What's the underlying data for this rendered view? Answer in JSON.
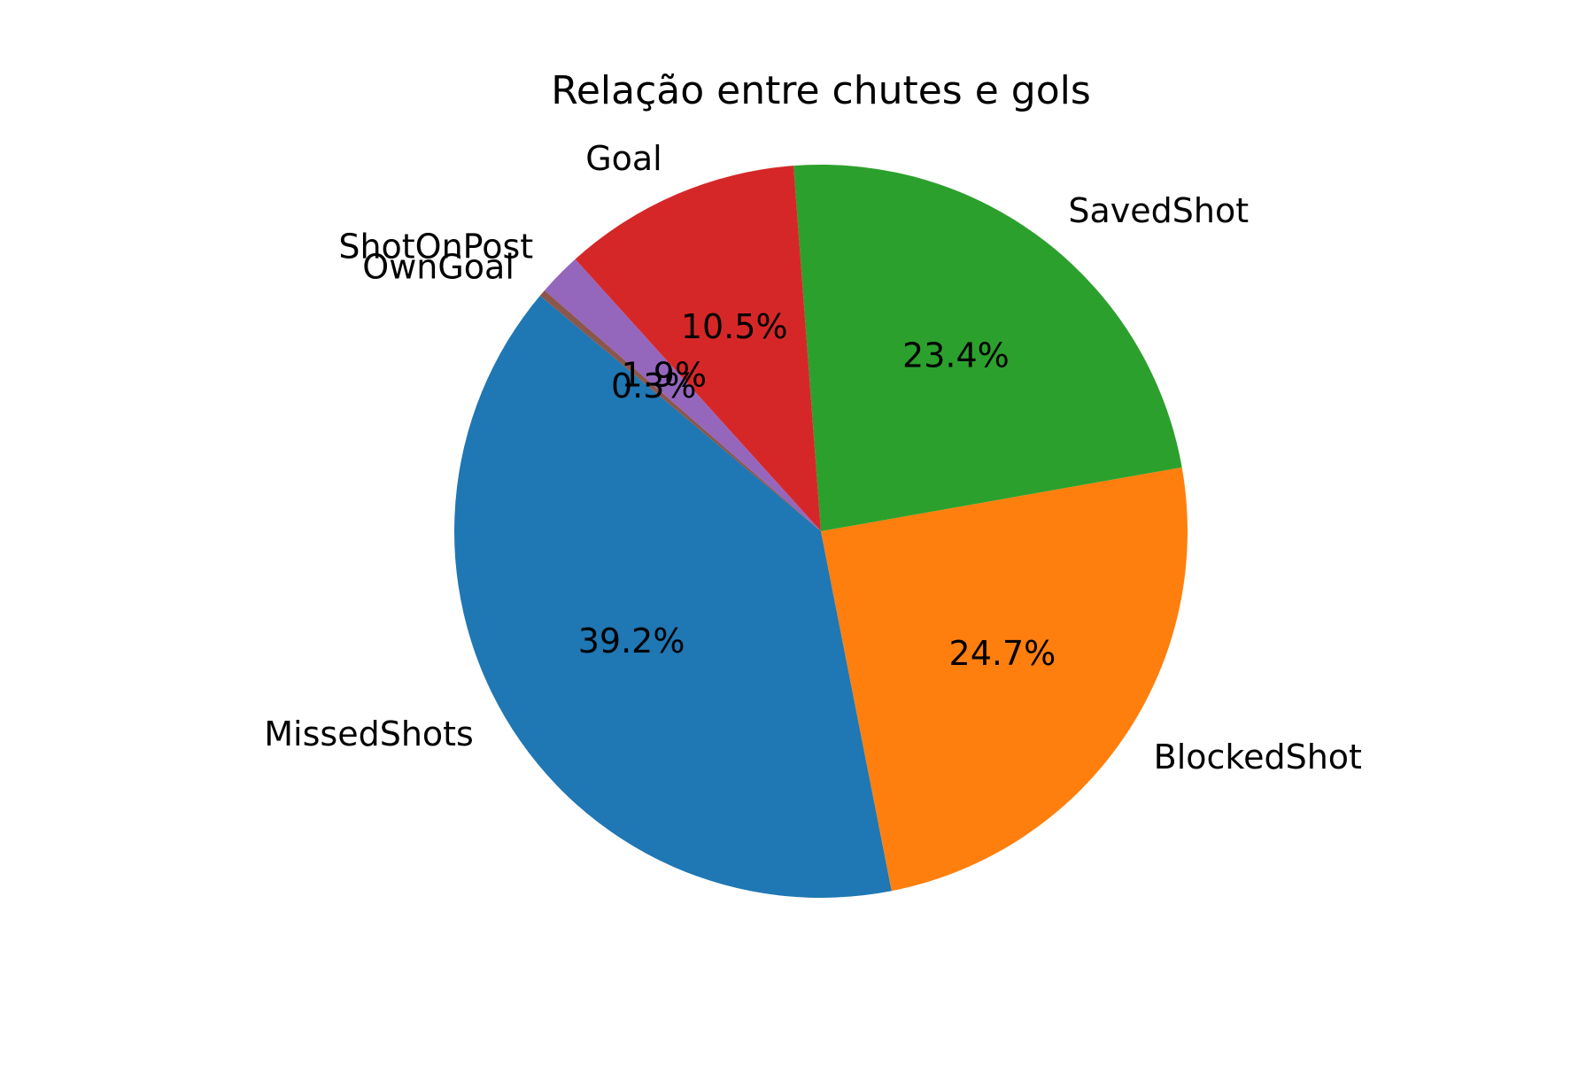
{
  "chart_data": {
    "type": "pie",
    "title": "Relação entre chutes e gols",
    "start_angle_deg": 140,
    "direction": "counterclockwise",
    "slices": [
      {
        "label": "MissedShots",
        "value": 39.2,
        "pct_label": "39.2%",
        "color": "#1f77b4"
      },
      {
        "label": "BlockedShot",
        "value": 24.7,
        "pct_label": "24.7%",
        "color": "#ff7f0e"
      },
      {
        "label": "SavedShot",
        "value": 23.4,
        "pct_label": "23.4%",
        "color": "#2ca02c"
      },
      {
        "label": "Goal",
        "value": 10.5,
        "pct_label": "10.5%",
        "color": "#d62728"
      },
      {
        "label": "ShotOnPost",
        "value": 1.9,
        "pct_label": "1.9%",
        "color": "#9467bd"
      },
      {
        "label": "OwnGoal",
        "value": 0.3,
        "pct_label": "0.3%",
        "color": "#8c564b"
      }
    ]
  }
}
